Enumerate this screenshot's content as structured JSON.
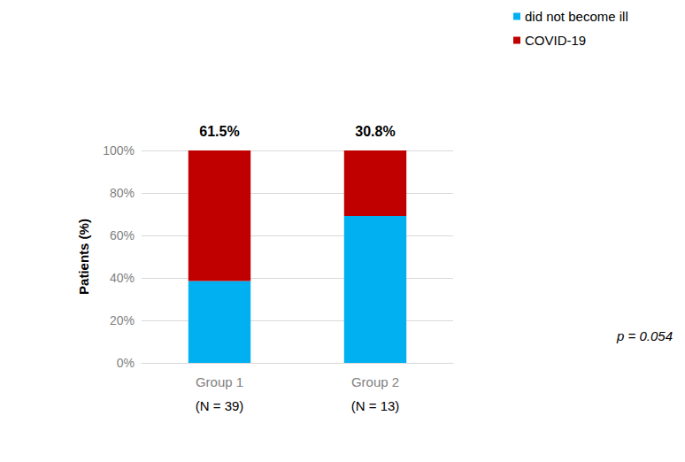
{
  "chart_data": {
    "type": "bar",
    "stacked": true,
    "categories": [
      "Group 1",
      "Group 2"
    ],
    "category_notes": [
      "(N = 39)",
      "(N = 13)"
    ],
    "series": [
      {
        "name": "did not become ill",
        "color": "#00b0f0",
        "values": [
          38.5,
          69.2
        ]
      },
      {
        "name": "COVID-19",
        "color": "#c00000",
        "values": [
          61.5,
          30.8
        ],
        "value_labels": [
          "61.5%",
          "30.8%"
        ]
      }
    ],
    "y_label": "Patients (%)",
    "ylim": [
      0,
      100
    ],
    "yticks": [
      {
        "value": 0,
        "label": "0%"
      },
      {
        "value": 20,
        "label": "20%"
      },
      {
        "value": 40,
        "label": "40%"
      },
      {
        "value": 60,
        "label": "60%"
      },
      {
        "value": 80,
        "label": "80%"
      },
      {
        "value": 100,
        "label": "100%"
      }
    ],
    "grid": true,
    "legend": "top",
    "data_labels": true,
    "annotations": [
      {
        "text": "p = 0.054"
      }
    ]
  }
}
